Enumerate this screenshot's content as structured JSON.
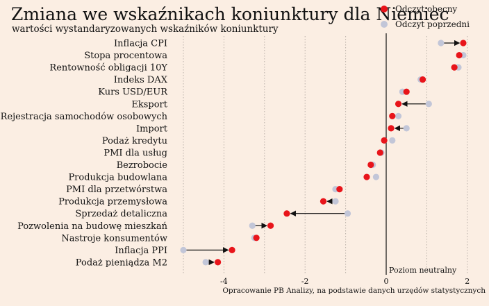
{
  "colors": {
    "background": "#fbeee3",
    "current": "#e8141a",
    "previous": "#c2c6d8",
    "grid": "#b9b0a8",
    "arrow": "#111111"
  },
  "header": {
    "title": "Zmiana we wskaźnikach koniunktury dla Niemiec",
    "subtitle": "wartości wystandaryzowanych wskaźników koniunktury"
  },
  "legend": {
    "current_label": "Odczyt obecny",
    "previous_label": "Odczyt poprzedni"
  },
  "footer": {
    "source": "Opracowanie PB Analizy, na podstawie danych urzędów statystycznych"
  },
  "chart_data": {
    "type": "dumbbell",
    "title": "Zmiana we wskaźnikach koniunktury dla Niemiec",
    "subtitle": "wartości wystandaryzowanych wskaźników koniunktury",
    "xlim": [
      -5.2,
      2.3
    ],
    "x_ticks": [
      -4,
      -2,
      0,
      2
    ],
    "x_tick_labels": [
      "-4",
      "-2",
      "0",
      "2"
    ],
    "grid": "vertical dotted",
    "reference_line": {
      "x": 0,
      "label": "Poziom neutralny"
    },
    "legend_position": "top-right",
    "series": [
      {
        "name": "Odczyt obecny",
        "role": "current"
      },
      {
        "name": "Odczyt poprzedni",
        "role": "previous"
      }
    ],
    "categories": [
      "Inflacja CPI",
      "Stopa procentowa",
      "Rentowność obligacji 10Y",
      "Indeks DAX",
      "Kurs USD/EUR",
      "Eksport",
      "Rejestracja samochodów osobowych",
      "Import",
      "Podaż kredytu",
      "PMI dla usług",
      "Bezrobocie",
      "Produkcja budowlana",
      "PMI dla przetwórstwa",
      "Produkcja przemysłowa",
      "Sprzedaż detaliczna",
      "Pozwolenia na budowę mieszkań",
      "Nastroje konsumentów",
      "Inflacja PPI",
      "Podaż pieniądza M2"
    ],
    "current": [
      1.9,
      1.8,
      1.68,
      0.9,
      0.5,
      0.3,
      0.15,
      0.12,
      -0.05,
      -0.15,
      -0.38,
      -0.48,
      -1.15,
      -1.55,
      -2.45,
      -2.85,
      -3.2,
      -3.8,
      -4.15
    ],
    "previous": [
      1.35,
      1.9,
      1.78,
      0.85,
      0.4,
      1.05,
      0.3,
      0.5,
      0.15,
      -0.12,
      -0.33,
      -0.25,
      -1.25,
      -1.25,
      -0.95,
      -3.3,
      -3.25,
      -5.0,
      -4.45
    ]
  }
}
